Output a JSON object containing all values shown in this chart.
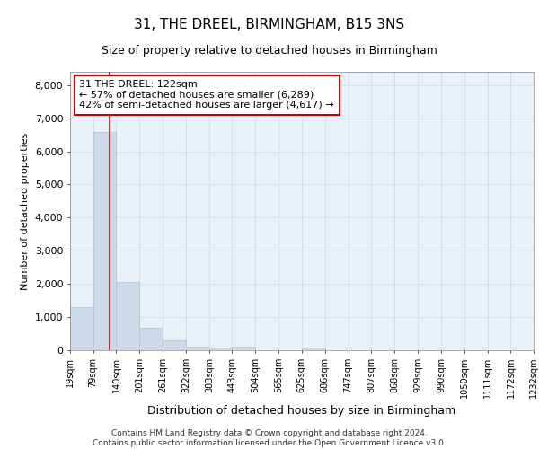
{
  "title": "31, THE DREEL, BIRMINGHAM, B15 3NS",
  "subtitle": "Size of property relative to detached houses in Birmingham",
  "xlabel": "Distribution of detached houses by size in Birmingham",
  "ylabel": "Number of detached properties",
  "footer_line1": "Contains HM Land Registry data © Crown copyright and database right 2024.",
  "footer_line2": "Contains public sector information licensed under the Open Government Licence v3.0.",
  "annotation_line1": "31 THE DREEL: 122sqm",
  "annotation_line2": "← 57% of detached houses are smaller (6,289)",
  "annotation_line3": "42% of semi-detached houses are larger (4,617) →",
  "bar_color": "#ccd9e8",
  "bar_edge_color": "#b0c4d8",
  "red_line_color": "#cc0000",
  "annotation_box_edge": "#cc0000",
  "grid_color": "#d0d8e0",
  "background_color": "#eaf0f8",
  "bin_edges": [
    19,
    79,
    140,
    201,
    261,
    322,
    383,
    443,
    504,
    565,
    625,
    686,
    747,
    807,
    868,
    929,
    990,
    1050,
    1111,
    1172,
    1232
  ],
  "bar_heights": [
    1310,
    6580,
    2070,
    680,
    290,
    120,
    70,
    100,
    0,
    0,
    80,
    0,
    0,
    0,
    0,
    0,
    0,
    0,
    0,
    0
  ],
  "ylim": [
    0,
    8400
  ],
  "yticks": [
    0,
    1000,
    2000,
    3000,
    4000,
    5000,
    6000,
    7000,
    8000
  ],
  "red_line_x": 122,
  "title_fontsize": 11,
  "subtitle_fontsize": 9,
  "ylabel_fontsize": 8,
  "xlabel_fontsize": 9,
  "ytick_fontsize": 8,
  "xtick_fontsize": 7,
  "annotation_fontsize": 8,
  "footer_fontsize": 6.5
}
